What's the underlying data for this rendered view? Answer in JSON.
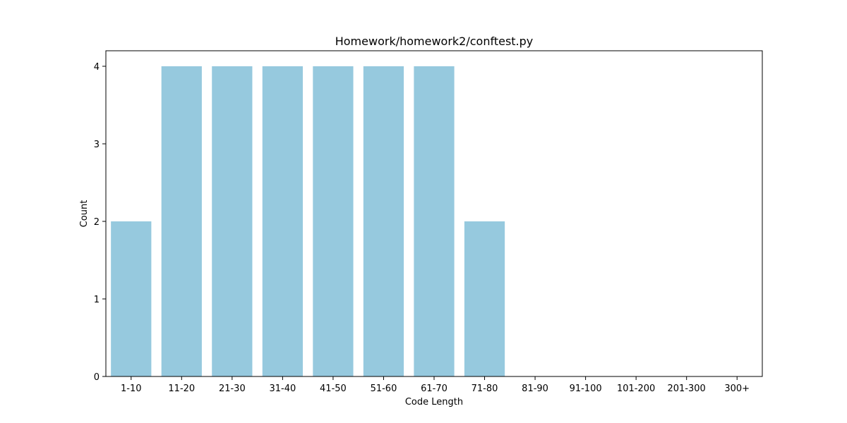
{
  "chart_data": {
    "type": "bar",
    "title": "Homework/homework2/conftest.py",
    "xlabel": "Code Length",
    "ylabel": "Count",
    "categories": [
      "1-10",
      "11-20",
      "21-30",
      "31-40",
      "41-50",
      "51-60",
      "61-70",
      "71-80",
      "81-90",
      "91-100",
      "101-200",
      "201-300",
      "300+"
    ],
    "values": [
      2,
      4,
      4,
      4,
      4,
      4,
      4,
      2,
      0,
      0,
      0,
      0,
      0
    ],
    "yticks": [
      0,
      1,
      2,
      3,
      4
    ],
    "ylim": [
      0,
      4.2
    ],
    "grid": false,
    "bar_color": "#96c9de"
  }
}
